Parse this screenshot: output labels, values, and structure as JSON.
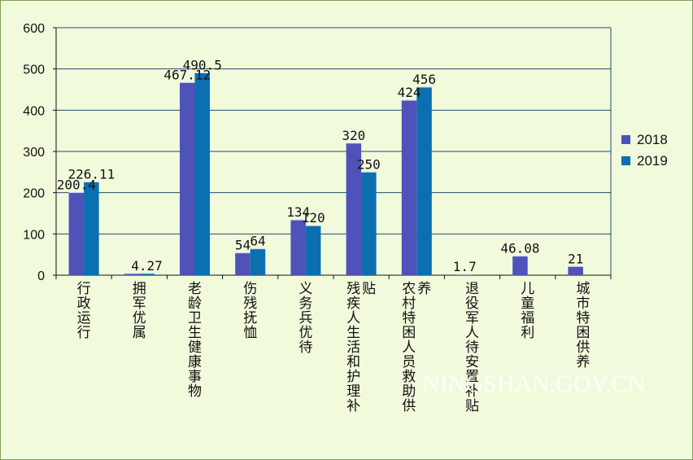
{
  "chart_data": {
    "type": "bar",
    "categories": [
      "行政运行",
      "拥军优属",
      "老龄卫生健康事物",
      "伤残抚恤",
      "义务兵优待",
      "残疾人生活和护理补贴",
      "农村特困人员救助供养",
      "退役军人待安置补贴",
      "儿童福利",
      "城市特困供养"
    ],
    "series": [
      {
        "name": "2018",
        "color": "#4f52b8",
        "values": [
          200.4,
          4,
          467.12,
          54,
          134,
          320,
          424,
          1.7,
          46.08,
          21
        ],
        "labels": [
          "200.4",
          "",
          "467.12",
          "54",
          "134",
          "320",
          "424",
          "1.7",
          "46.08",
          "21"
        ]
      },
      {
        "name": "2019",
        "color": "#0b6fb0",
        "values": [
          226.11,
          4.27,
          490.5,
          64,
          120,
          250,
          456,
          null,
          null,
          null
        ],
        "labels": [
          "226.11",
          "4.27",
          "490.5",
          "64",
          "120",
          "250",
          "456",
          "",
          "",
          ""
        ]
      }
    ],
    "ylim": [
      0,
      600
    ],
    "yticks": [
      0,
      100,
      200,
      300,
      400,
      500,
      600
    ],
    "grid": true,
    "legend_position": "right",
    "plot_background": "#f1fbdc",
    "gridline_color": "#1f4e6e"
  },
  "watermark": "NINGSHAN.GOV.CN"
}
